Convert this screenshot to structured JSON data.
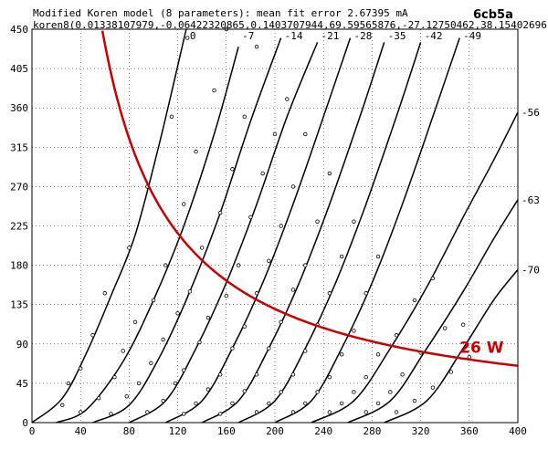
{
  "chart_data": {
    "type": "line",
    "title": "Modified Koren model (8 parameters): mean fit error 2.67395 mA",
    "subtitle": "koren8(0.01338107979,-0.06422320865,0.1403707944,69.59565876,-27.12750462,38.15402696,-",
    "tube_label": "6cb5a",
    "xlabel": "",
    "ylabel": "",
    "xlim": [
      0,
      400
    ],
    "ylim": [
      0,
      450
    ],
    "x_ticks": [
      "0",
      "40",
      "80",
      "120",
      "160",
      "200",
      "240",
      "280",
      "320",
      "360",
      "400"
    ],
    "y_ticks": [
      "0",
      "45",
      "90",
      "135",
      "180",
      "225",
      "270",
      "315",
      "360",
      "405",
      "450"
    ],
    "grid": true,
    "series": [
      {
        "name": "0",
        "x": [
          0,
          25,
          45,
          65,
          85,
          105,
          127
        ],
        "y": [
          0,
          28,
          80,
          145,
          215,
          320,
          450
        ]
      },
      {
        "name": "-7",
        "x": [
          20,
          45,
          75,
          100,
          125,
          150,
          170
        ],
        "y": [
          0,
          15,
          70,
          140,
          225,
          330,
          430
        ]
      },
      {
        "name": "-14",
        "x": [
          50,
          80,
          105,
          130,
          155,
          180,
          205
        ],
        "y": [
          0,
          20,
          75,
          150,
          240,
          345,
          440
        ]
      },
      {
        "name": "-21",
        "x": [
          80,
          110,
          135,
          160,
          185,
          210,
          235
        ],
        "y": [
          0,
          25,
          85,
          160,
          250,
          350,
          435
        ]
      },
      {
        "name": "-28",
        "x": [
          110,
          140,
          165,
          190,
          215,
          240,
          262
        ],
        "y": [
          0,
          25,
          85,
          160,
          250,
          350,
          440
        ]
      },
      {
        "name": "-35",
        "x": [
          140,
          170,
          195,
          220,
          245,
          270,
          290
        ],
        "y": [
          0,
          25,
          85,
          160,
          250,
          350,
          435
        ]
      },
      {
        "name": "-42",
        "x": [
          170,
          200,
          225,
          250,
          275,
          300,
          320
        ],
        "y": [
          0,
          25,
          85,
          160,
          250,
          350,
          435
        ]
      },
      {
        "name": "-49",
        "x": [
          200,
          230,
          255,
          280,
          305,
          330,
          352
        ],
        "y": [
          0,
          25,
          85,
          160,
          250,
          350,
          440
        ]
      },
      {
        "name": "-56",
        "x": [
          230,
          265,
          295,
          325,
          355,
          380,
          400
        ],
        "y": [
          0,
          25,
          85,
          155,
          235,
          300,
          355
        ]
      },
      {
        "name": "-63",
        "x": [
          260,
          295,
          325,
          355,
          380,
          400
        ],
        "y": [
          0,
          25,
          85,
          150,
          210,
          255
        ]
      },
      {
        "name": "-70",
        "x": [
          290,
          325,
          355,
          380,
          400
        ],
        "y": [
          0,
          25,
          85,
          140,
          175
        ]
      }
    ],
    "measured_points": [
      [
        25,
        20
      ],
      [
        30,
        45
      ],
      [
        40,
        62
      ],
      [
        50,
        100
      ],
      [
        60,
        148
      ],
      [
        80,
        200
      ],
      [
        95,
        270
      ],
      [
        115,
        350
      ],
      [
        128,
        440
      ],
      [
        40,
        12
      ],
      [
        55,
        28
      ],
      [
        68,
        52
      ],
      [
        75,
        82
      ],
      [
        85,
        115
      ],
      [
        100,
        140
      ],
      [
        110,
        180
      ],
      [
        125,
        250
      ],
      [
        135,
        310
      ],
      [
        150,
        380
      ],
      [
        160,
        450
      ],
      [
        65,
        10
      ],
      [
        78,
        30
      ],
      [
        88,
        45
      ],
      [
        98,
        68
      ],
      [
        108,
        95
      ],
      [
        120,
        125
      ],
      [
        130,
        150
      ],
      [
        140,
        200
      ],
      [
        155,
        240
      ],
      [
        165,
        290
      ],
      [
        175,
        350
      ],
      [
        185,
        430
      ],
      [
        95,
        12
      ],
      [
        108,
        25
      ],
      [
        118,
        45
      ],
      [
        125,
        60
      ],
      [
        138,
        92
      ],
      [
        145,
        120
      ],
      [
        160,
        145
      ],
      [
        170,
        180
      ],
      [
        180,
        235
      ],
      [
        190,
        285
      ],
      [
        200,
        330
      ],
      [
        210,
        370
      ],
      [
        125,
        10
      ],
      [
        135,
        22
      ],
      [
        145,
        38
      ],
      [
        155,
        55
      ],
      [
        165,
        85
      ],
      [
        175,
        110
      ],
      [
        185,
        148
      ],
      [
        195,
        185
      ],
      [
        205,
        225
      ],
      [
        215,
        270
      ],
      [
        225,
        330
      ],
      [
        155,
        10
      ],
      [
        165,
        22
      ],
      [
        175,
        36
      ],
      [
        185,
        55
      ],
      [
        195,
        85
      ],
      [
        205,
        115
      ],
      [
        215,
        152
      ],
      [
        225,
        180
      ],
      [
        235,
        230
      ],
      [
        245,
        285
      ],
      [
        185,
        12
      ],
      [
        195,
        22
      ],
      [
        205,
        35
      ],
      [
        215,
        55
      ],
      [
        225,
        82
      ],
      [
        235,
        112
      ],
      [
        245,
        148
      ],
      [
        255,
        190
      ],
      [
        265,
        230
      ],
      [
        215,
        12
      ],
      [
        225,
        22
      ],
      [
        235,
        35
      ],
      [
        245,
        52
      ],
      [
        255,
        78
      ],
      [
        265,
        105
      ],
      [
        275,
        148
      ],
      [
        285,
        190
      ],
      [
        245,
        12
      ],
      [
        255,
        22
      ],
      [
        265,
        35
      ],
      [
        275,
        52
      ],
      [
        285,
        78
      ],
      [
        300,
        100
      ],
      [
        315,
        140
      ],
      [
        330,
        165
      ],
      [
        275,
        12
      ],
      [
        285,
        22
      ],
      [
        295,
        35
      ],
      [
        305,
        55
      ],
      [
        320,
        80
      ],
      [
        340,
        108
      ],
      [
        355,
        112
      ],
      [
        300,
        12
      ],
      [
        315,
        25
      ],
      [
        330,
        40
      ],
      [
        345,
        58
      ],
      [
        360,
        75
      ]
    ],
    "power_curve": {
      "label": "26 W",
      "color": "#cc0000",
      "watts": 26000,
      "x_range": [
        58,
        400
      ]
    }
  },
  "colors": {
    "axis": "#000000",
    "grid": "#000000",
    "curve": "#000000",
    "power": "#cc0000"
  }
}
